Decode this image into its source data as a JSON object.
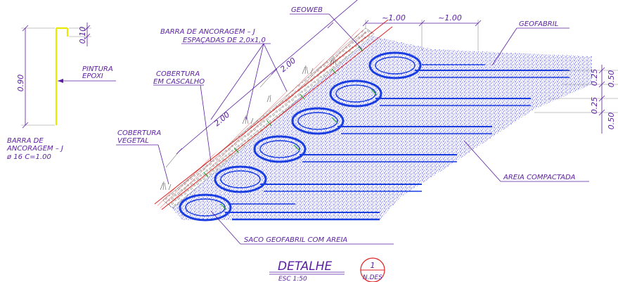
{
  "labels": {
    "geoweb": "GEOWEB",
    "geofabril": "GEOFABRIL",
    "barra_ancoragem_1": "BARRA DE ANCORAGEM – J",
    "barra_ancoragem_2": "ESPAÇADAS DE 2,0x1,0",
    "pintura_1": "PINTURA",
    "pintura_2": "EPOXI",
    "cobertura_cascalho_1": "COBERTURA",
    "cobertura_cascalho_2": "EM CASCALHO",
    "cobertura_vegetal_1": "COBERTURA",
    "cobertura_vegetal_2": "VEGETAL",
    "barra_detail_1": "BARRA DE",
    "barra_detail_2": "ANCORAGEM – J",
    "barra_detail_3": "ø 16  C=1.00",
    "areia": "AREIA COMPACTADA",
    "saco": "SACO GEOFABRIL COM AREIA"
  },
  "dimensions": {
    "top_a": "~1.00",
    "top_b": "~1.00",
    "slope_a": "2.00",
    "slope_b": "2.00",
    "bar_length": "0.90",
    "bar_hook": "0.10",
    "layer_a": "0.25",
    "layer_b": "0.25",
    "layer_c": "0.50",
    "layer_d": "0.50"
  },
  "title_block": {
    "title": "DETALHE",
    "scale": "ESC 1:50",
    "number": "1",
    "sheet": "N.DES"
  },
  "colors": {
    "annotation": "#5a1ea0",
    "bags": "#1a3ee0",
    "slope_line": "#e02020",
    "bar": "#ffff00",
    "fill_dots": "#2a2ad8"
  }
}
